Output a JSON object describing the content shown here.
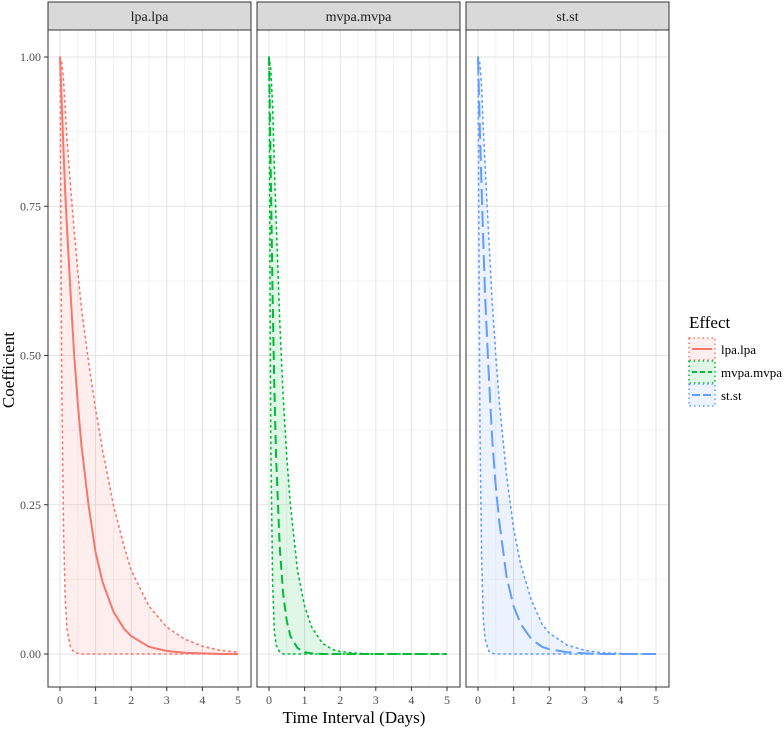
{
  "chart_data": {
    "type": "line",
    "xlabel": "Time Interval (Days)",
    "ylabel": "Coefficient",
    "xlim": [
      0,
      5
    ],
    "ylim": [
      0,
      1
    ],
    "x_ticks": [
      0,
      1,
      2,
      3,
      4,
      5
    ],
    "y_ticks": [
      "0.00",
      "0.25",
      "0.50",
      "0.75",
      "1.00"
    ],
    "y_tick_values": [
      0,
      0.25,
      0.5,
      0.75,
      1.0
    ],
    "grid": true,
    "legend": {
      "title": "Effect",
      "position": "right",
      "entries": [
        "lpa.lpa",
        "mvpa.mvpa",
        "st.st"
      ]
    },
    "x": [
      0,
      0.05,
      0.1,
      0.15,
      0.2,
      0.3,
      0.4,
      0.5,
      0.6,
      0.8,
      1.0,
      1.2,
      1.5,
      1.8,
      2.0,
      2.5,
      3.0,
      3.5,
      4.0,
      4.5,
      5.0
    ],
    "panels": [
      {
        "strip": "lpa.lpa",
        "color": "#F8766D",
        "linestyle": "solid",
        "estimate": [
          1.0,
          0.92,
          0.84,
          0.77,
          0.71,
          0.6,
          0.5,
          0.42,
          0.35,
          0.25,
          0.17,
          0.12,
          0.071,
          0.042,
          0.03,
          0.012,
          0.005,
          0.002,
          0.001,
          0.0,
          0.0
        ],
        "lower": [
          1.0,
          0.45,
          0.2,
          0.09,
          0.04,
          0.01,
          0.003,
          0.001,
          0.0,
          0.0,
          0.0,
          0.0,
          0.0,
          0.0,
          0.0,
          0.0,
          0.0,
          0.0,
          0.0,
          0.0,
          0.0
        ],
        "upper": [
          1.0,
          0.99,
          0.96,
          0.91,
          0.86,
          0.78,
          0.71,
          0.64,
          0.58,
          0.49,
          0.41,
          0.34,
          0.25,
          0.18,
          0.14,
          0.08,
          0.045,
          0.025,
          0.013,
          0.006,
          0.003
        ]
      },
      {
        "strip": "mvpa.mvpa",
        "color": "#00BA38",
        "linestyle": "dashed",
        "estimate": [
          1.0,
          0.8,
          0.6,
          0.45,
          0.33,
          0.18,
          0.1,
          0.055,
          0.03,
          0.01,
          0.003,
          0.001,
          0.0,
          0.0,
          0.0,
          0.0,
          0.0,
          0.0,
          0.0,
          0.0,
          0.0
        ],
        "lower": [
          1.0,
          0.35,
          0.12,
          0.04,
          0.015,
          0.003,
          0.0,
          0.0,
          0.0,
          0.0,
          0.0,
          0.0,
          0.0,
          0.0,
          0.0,
          0.0,
          0.0,
          0.0,
          0.0,
          0.0,
          0.0
        ],
        "upper": [
          1.0,
          0.98,
          0.92,
          0.82,
          0.73,
          0.56,
          0.43,
          0.33,
          0.25,
          0.14,
          0.08,
          0.045,
          0.018,
          0.007,
          0.004,
          0.001,
          0.0,
          0.0,
          0.0,
          0.0,
          0.0
        ]
      },
      {
        "strip": "st.st",
        "color": "#619CFF",
        "linestyle": "longdash",
        "estimate": [
          1.0,
          0.88,
          0.78,
          0.69,
          0.6,
          0.47,
          0.36,
          0.28,
          0.22,
          0.13,
          0.08,
          0.05,
          0.025,
          0.012,
          0.008,
          0.003,
          0.001,
          0.0,
          0.0,
          0.0,
          0.0
        ],
        "lower": [
          1.0,
          0.4,
          0.16,
          0.06,
          0.025,
          0.005,
          0.001,
          0.0,
          0.0,
          0.0,
          0.0,
          0.0,
          0.0,
          0.0,
          0.0,
          0.0,
          0.0,
          0.0,
          0.0,
          0.0,
          0.0
        ],
        "upper": [
          1.0,
          0.99,
          0.95,
          0.88,
          0.82,
          0.7,
          0.59,
          0.5,
          0.42,
          0.3,
          0.21,
          0.15,
          0.09,
          0.05,
          0.035,
          0.015,
          0.006,
          0.002,
          0.001,
          0.0,
          0.0
        ]
      }
    ]
  }
}
